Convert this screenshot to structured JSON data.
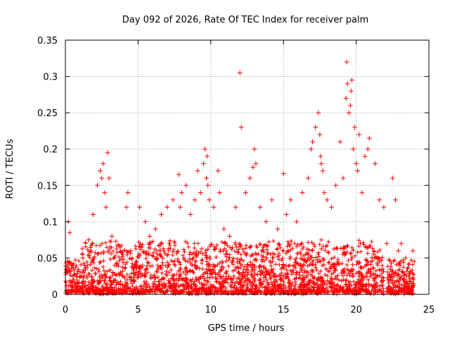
{
  "chart_data": {
    "type": "scatter",
    "title": "Day 092 of 2026, Rate Of TEC Index for receiver palm",
    "xlabel": "GPS time / hours",
    "ylabel": "ROTI / TECUs",
    "xlim": [
      0,
      25
    ],
    "ylim": [
      0,
      0.35
    ],
    "xticks": [
      "0",
      "5",
      "10",
      "15",
      "20",
      "25"
    ],
    "xtick_values": [
      0,
      5,
      10,
      15,
      20,
      25
    ],
    "yticks": [
      "0",
      "0.05",
      "0.1",
      "0.15",
      "0.2",
      "0.25",
      "0.3",
      "0.35"
    ],
    "ytick_values": [
      0,
      0.05,
      0.1,
      0.15,
      0.2,
      0.25,
      0.3,
      0.35
    ],
    "grid": true,
    "marker": "+",
    "series": [
      {
        "name": "ROTI",
        "color": "#ff0000",
        "x": [
          0.05,
          0.2,
          0.3,
          0.5,
          0.8,
          1.2,
          1.6,
          1.9,
          2.2,
          2.4,
          2.5,
          2.6,
          2.7,
          2.8,
          2.9,
          3.0,
          3.2,
          3.5,
          3.8,
          4.2,
          4.3,
          4.5,
          4.8,
          5.1,
          5.5,
          5.8,
          6.2,
          6.6,
          7.0,
          7.4,
          7.8,
          7.9,
          8.0,
          8.3,
          8.6,
          8.9,
          9.1,
          9.3,
          9.5,
          9.6,
          9.7,
          9.75,
          9.8,
          9.9,
          10.2,
          10.5,
          10.6,
          10.9,
          11.3,
          11.7,
          12.0,
          12.1,
          12.4,
          12.7,
          12.9,
          13.0,
          13.1,
          13.4,
          13.8,
          14.2,
          14.6,
          15.0,
          15.2,
          15.5,
          15.9,
          16.3,
          16.7,
          16.9,
          17.0,
          17.2,
          17.4,
          17.5,
          17.55,
          17.6,
          17.7,
          17.8,
          18.0,
          18.3,
          18.6,
          18.9,
          19.1,
          19.3,
          19.35,
          19.4,
          19.5,
          19.6,
          19.65,
          19.7,
          19.8,
          19.9,
          20.0,
          20.1,
          20.2,
          20.4,
          20.6,
          20.8,
          20.9,
          21.3,
          21.6,
          21.9,
          22.1,
          22.4,
          22.5,
          22.7,
          22.9,
          23.1,
          23.4,
          23.7,
          23.9
        ],
        "y": [
          0.03,
          0.1,
          0.085,
          0.04,
          0.025,
          0.05,
          0.075,
          0.11,
          0.15,
          0.17,
          0.16,
          0.18,
          0.14,
          0.12,
          0.195,
          0.16,
          0.08,
          0.04,
          0.03,
          0.12,
          0.14,
          0.06,
          0.04,
          0.12,
          0.1,
          0.08,
          0.09,
          0.11,
          0.12,
          0.13,
          0.165,
          0.12,
          0.14,
          0.15,
          0.11,
          0.13,
          0.17,
          0.14,
          0.18,
          0.2,
          0.16,
          0.19,
          0.15,
          0.13,
          0.12,
          0.17,
          0.14,
          0.09,
          0.08,
          0.12,
          0.305,
          0.23,
          0.14,
          0.16,
          0.175,
          0.2,
          0.18,
          0.12,
          0.1,
          0.13,
          0.09,
          0.166,
          0.11,
          0.13,
          0.1,
          0.14,
          0.16,
          0.2,
          0.21,
          0.23,
          0.25,
          0.22,
          0.19,
          0.18,
          0.17,
          0.14,
          0.13,
          0.12,
          0.15,
          0.21,
          0.16,
          0.27,
          0.32,
          0.29,
          0.25,
          0.26,
          0.28,
          0.295,
          0.2,
          0.23,
          0.18,
          0.17,
          0.22,
          0.14,
          0.19,
          0.2,
          0.215,
          0.18,
          0.13,
          0.12,
          0.07,
          0.02,
          0.16,
          0.13,
          0.06,
          0.07,
          0.05,
          0.03,
          0.06
        ]
      }
    ]
  }
}
